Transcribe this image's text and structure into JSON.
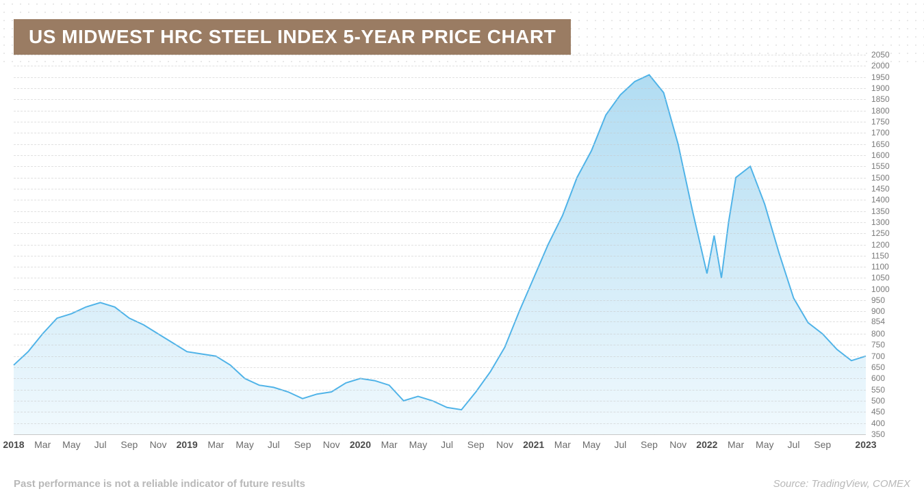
{
  "title": {
    "text": "US MIDWEST HRC STEEL INDEX 5-YEAR PRICE CHART",
    "bg_color": "#9a7c63",
    "text_color": "#ffffff",
    "fontsize": 28
  },
  "chart": {
    "type": "area",
    "line_color": "#4fb3e8",
    "line_width": 2,
    "fill_top_color": "#a3d6f0",
    "fill_bottom_color": "#eef8fd",
    "fill_opacity": 0.85,
    "background_color": "#ffffff",
    "grid_color": "#c7c7c7",
    "grid_dash": [
      6,
      6
    ],
    "ylim": [
      350,
      2050
    ],
    "y_ticks": [
      350,
      400,
      450,
      500,
      550,
      600,
      650,
      700,
      750,
      800,
      854,
      900,
      950,
      1000,
      1050,
      1100,
      1150,
      1200,
      1250,
      1300,
      1350,
      1400,
      1450,
      1500,
      1550,
      1600,
      1650,
      1700,
      1750,
      1800,
      1850,
      1900,
      1950,
      2000,
      2050
    ],
    "y_label_fontsize": 12,
    "y_label_color": "#7a7a7a",
    "x_labels": [
      {
        "t": 0,
        "label": "2018",
        "bold": true
      },
      {
        "t": 2,
        "label": "Mar"
      },
      {
        "t": 4,
        "label": "May"
      },
      {
        "t": 6,
        "label": "Jul"
      },
      {
        "t": 8,
        "label": "Sep"
      },
      {
        "t": 10,
        "label": "Nov"
      },
      {
        "t": 12,
        "label": "2019",
        "bold": true
      },
      {
        "t": 14,
        "label": "Mar"
      },
      {
        "t": 16,
        "label": "May"
      },
      {
        "t": 18,
        "label": "Jul"
      },
      {
        "t": 20,
        "label": "Sep"
      },
      {
        "t": 22,
        "label": "Nov"
      },
      {
        "t": 24,
        "label": "2020",
        "bold": true
      },
      {
        "t": 26,
        "label": "Mar"
      },
      {
        "t": 28,
        "label": "May"
      },
      {
        "t": 30,
        "label": "Jul"
      },
      {
        "t": 32,
        "label": "Sep"
      },
      {
        "t": 34,
        "label": "Nov"
      },
      {
        "t": 36,
        "label": "2021",
        "bold": true
      },
      {
        "t": 38,
        "label": "Mar"
      },
      {
        "t": 40,
        "label": "May"
      },
      {
        "t": 42,
        "label": "Jul"
      },
      {
        "t": 44,
        "label": "Sep"
      },
      {
        "t": 46,
        "label": "Nov"
      },
      {
        "t": 48,
        "label": "2022",
        "bold": true
      },
      {
        "t": 50,
        "label": "Mar"
      },
      {
        "t": 52,
        "label": "May"
      },
      {
        "t": 54,
        "label": "Jul"
      },
      {
        "t": 56,
        "label": "Sep"
      },
      {
        "t": 59,
        "label": "2023",
        "bold": true
      }
    ],
    "x_label_fontsize": 14,
    "x_range": [
      0,
      59
    ],
    "series": [
      {
        "t": 0,
        "v": 660
      },
      {
        "t": 1,
        "v": 720
      },
      {
        "t": 2,
        "v": 800
      },
      {
        "t": 3,
        "v": 870
      },
      {
        "t": 4,
        "v": 890
      },
      {
        "t": 5,
        "v": 920
      },
      {
        "t": 6,
        "v": 940
      },
      {
        "t": 7,
        "v": 920
      },
      {
        "t": 8,
        "v": 870
      },
      {
        "t": 9,
        "v": 840
      },
      {
        "t": 10,
        "v": 800
      },
      {
        "t": 11,
        "v": 760
      },
      {
        "t": 12,
        "v": 720
      },
      {
        "t": 13,
        "v": 710
      },
      {
        "t": 14,
        "v": 700
      },
      {
        "t": 15,
        "v": 660
      },
      {
        "t": 16,
        "v": 600
      },
      {
        "t": 17,
        "v": 570
      },
      {
        "t": 18,
        "v": 560
      },
      {
        "t": 19,
        "v": 540
      },
      {
        "t": 20,
        "v": 510
      },
      {
        "t": 21,
        "v": 530
      },
      {
        "t": 22,
        "v": 540
      },
      {
        "t": 23,
        "v": 580
      },
      {
        "t": 24,
        "v": 600
      },
      {
        "t": 25,
        "v": 590
      },
      {
        "t": 26,
        "v": 570
      },
      {
        "t": 27,
        "v": 500
      },
      {
        "t": 28,
        "v": 520
      },
      {
        "t": 29,
        "v": 500
      },
      {
        "t": 30,
        "v": 470
      },
      {
        "t": 31,
        "v": 460
      },
      {
        "t": 32,
        "v": 540
      },
      {
        "t": 33,
        "v": 630
      },
      {
        "t": 34,
        "v": 740
      },
      {
        "t": 35,
        "v": 900
      },
      {
        "t": 36,
        "v": 1050
      },
      {
        "t": 37,
        "v": 1200
      },
      {
        "t": 38,
        "v": 1330
      },
      {
        "t": 39,
        "v": 1500
      },
      {
        "t": 40,
        "v": 1620
      },
      {
        "t": 41,
        "v": 1780
      },
      {
        "t": 42,
        "v": 1870
      },
      {
        "t": 43,
        "v": 1930
      },
      {
        "t": 44,
        "v": 1960
      },
      {
        "t": 45,
        "v": 1880
      },
      {
        "t": 46,
        "v": 1650
      },
      {
        "t": 47,
        "v": 1350
      },
      {
        "t": 48,
        "v": 1070
      },
      {
        "t": 48.5,
        "v": 1240
      },
      {
        "t": 49,
        "v": 1050
      },
      {
        "t": 49.5,
        "v": 1300
      },
      {
        "t": 50,
        "v": 1500
      },
      {
        "t": 51,
        "v": 1550
      },
      {
        "t": 52,
        "v": 1380
      },
      {
        "t": 53,
        "v": 1160
      },
      {
        "t": 54,
        "v": 960
      },
      {
        "t": 55,
        "v": 850
      },
      {
        "t": 56,
        "v": 800
      },
      {
        "t": 57,
        "v": 730
      },
      {
        "t": 58,
        "v": 680
      },
      {
        "t": 59,
        "v": 700
      }
    ]
  },
  "footer": {
    "disclaimer": "Past performance is not a reliable indicator of future results",
    "source": "Source: TradingView, COMEX",
    "text_color": "#b8b8b8"
  }
}
